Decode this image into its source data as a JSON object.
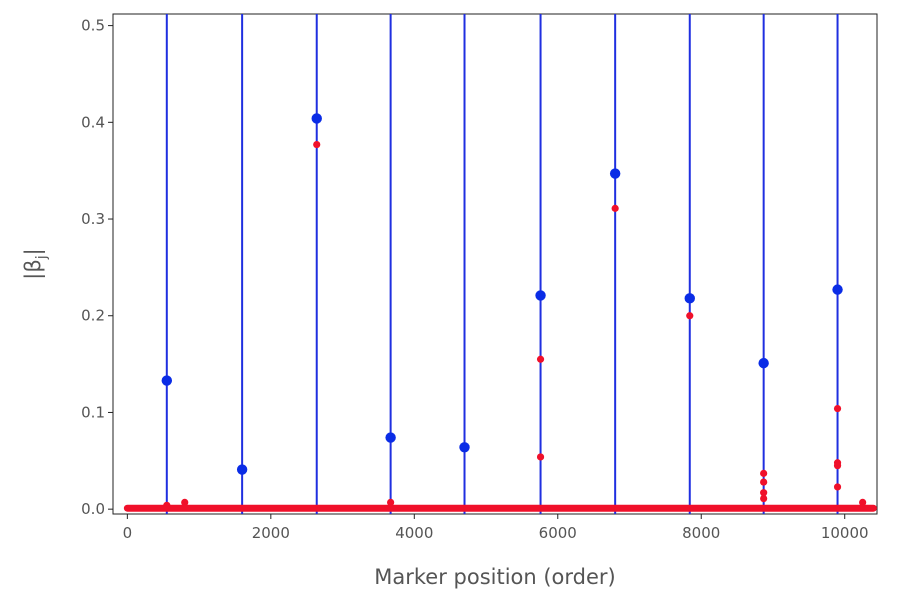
{
  "chart_data": {
    "type": "scatter",
    "title": "",
    "xlabel": "Marker position (order)",
    "ylabel_base": "|β",
    "ylabel_sub": "j",
    "ylabel_close": "|",
    "xlim": [
      -200,
      10450
    ],
    "ylim": [
      -0.005,
      0.512
    ],
    "x_ticks": [
      0,
      2000,
      4000,
      6000,
      8000,
      10000
    ],
    "x_tick_labels": [
      "0",
      "2000",
      "4000",
      "6000",
      "8000",
      "10000"
    ],
    "y_ticks": [
      0.0,
      0.1,
      0.2,
      0.3,
      0.4,
      0.5
    ],
    "y_tick_labels": [
      "0.0",
      "0.1",
      "0.2",
      "0.3",
      "0.4",
      "0.5"
    ],
    "grid": false,
    "vertical_lines": [
      550,
      1600,
      2640,
      3670,
      4700,
      5760,
      6800,
      7840,
      8870,
      9900
    ],
    "colors": {
      "lines": "#1f2fe0",
      "true_points": "#0a2ce6",
      "estimated_points": "#f0102a"
    },
    "series": [
      {
        "role": "true_points",
        "x": [
          550,
          1600,
          2640,
          3670,
          4700,
          5760,
          6800,
          7840,
          8870,
          9900
        ],
        "y": [
          0.133,
          0.041,
          0.404,
          0.074,
          0.064,
          0.221,
          0.347,
          0.218,
          0.151,
          0.227
        ]
      },
      {
        "role": "estimated_points",
        "x": [
          2640,
          5760,
          5760,
          6800,
          7840,
          8870,
          8870,
          8870,
          8870,
          9900,
          9900,
          9900,
          9900,
          550,
          800,
          3670,
          10250
        ],
        "y": [
          0.377,
          0.155,
          0.054,
          0.311,
          0.2,
          0.037,
          0.028,
          0.017,
          0.011,
          0.104,
          0.048,
          0.045,
          0.023,
          0.004,
          0.007,
          0.007,
          0.007
        ]
      }
    ],
    "baseline": {
      "x_start": 0,
      "x_end": 10400,
      "y": 0.001
    }
  }
}
